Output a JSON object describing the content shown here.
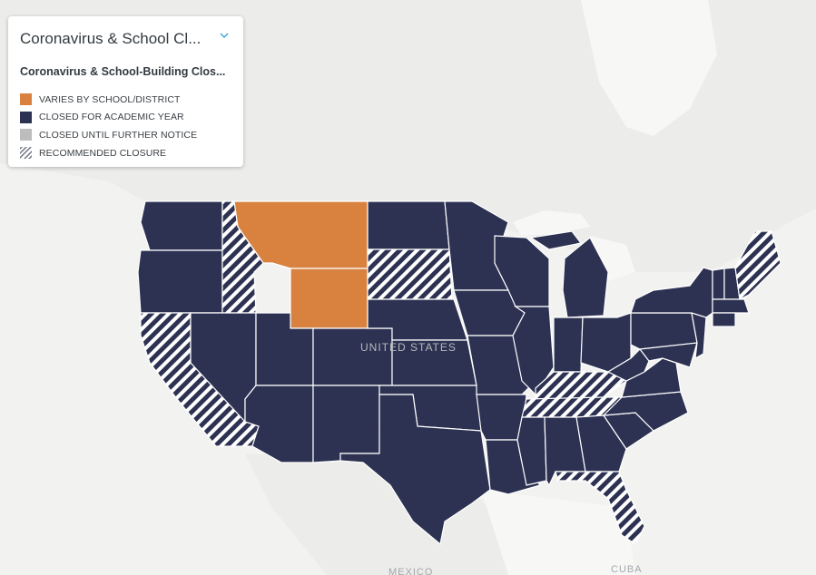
{
  "legend": {
    "title": "Coronavirus & School Cl...",
    "subtitle": "Coronavirus & School-Building Clos...",
    "items": [
      {
        "label": "VARIES BY SCHOOL/DISTRICT",
        "color": "#d9823f",
        "pattern": "solid"
      },
      {
        "label": "CLOSED FOR ACADEMIC YEAR",
        "color": "#2d3252",
        "pattern": "solid"
      },
      {
        "label": "CLOSED UNTIL FURTHER NOTICE",
        "color": "#bdbdbd",
        "pattern": "solid"
      },
      {
        "label": "RECOMMENDED CLOSURE",
        "color": "#2d3252",
        "pattern": "hatched"
      }
    ]
  },
  "map_labels": {
    "usa": "UNITED STATES",
    "mexico": "MEXICO",
    "cuba": "CUBA"
  },
  "states": {
    "varies": [
      "Montana",
      "Wyoming"
    ],
    "recommended": [
      "Idaho",
      "California",
      "South Dakota",
      "Kentucky",
      "Tennessee",
      "Florida",
      "Maine"
    ],
    "closed_academic_year": [
      "Washington",
      "Oregon",
      "Nevada",
      "Utah",
      "Arizona",
      "Colorado",
      "New Mexico",
      "North Dakota",
      "Nebraska",
      "Kansas",
      "Oklahoma",
      "Texas",
      "Minnesota",
      "Iowa",
      "Missouri",
      "Arkansas",
      "Louisiana",
      "Wisconsin",
      "Illinois",
      "Michigan",
      "Indiana",
      "Ohio",
      "Mississippi",
      "Alabama",
      "Georgia",
      "South Carolina",
      "North Carolina",
      "Virginia",
      "West Virginia",
      "Pennsylvania",
      "New York",
      "Vermont",
      "New Hampshire",
      "Massachusetts",
      "Connecticut",
      "Rhode Island",
      "New Jersey",
      "Delaware",
      "Maryland"
    ]
  },
  "colors": {
    "water": "#f7f7f6",
    "land": "#ececea",
    "border": "#ffffff",
    "varies": "#d9823f",
    "closed": "#2d3252",
    "hatch_bg": "#8e93a8"
  }
}
